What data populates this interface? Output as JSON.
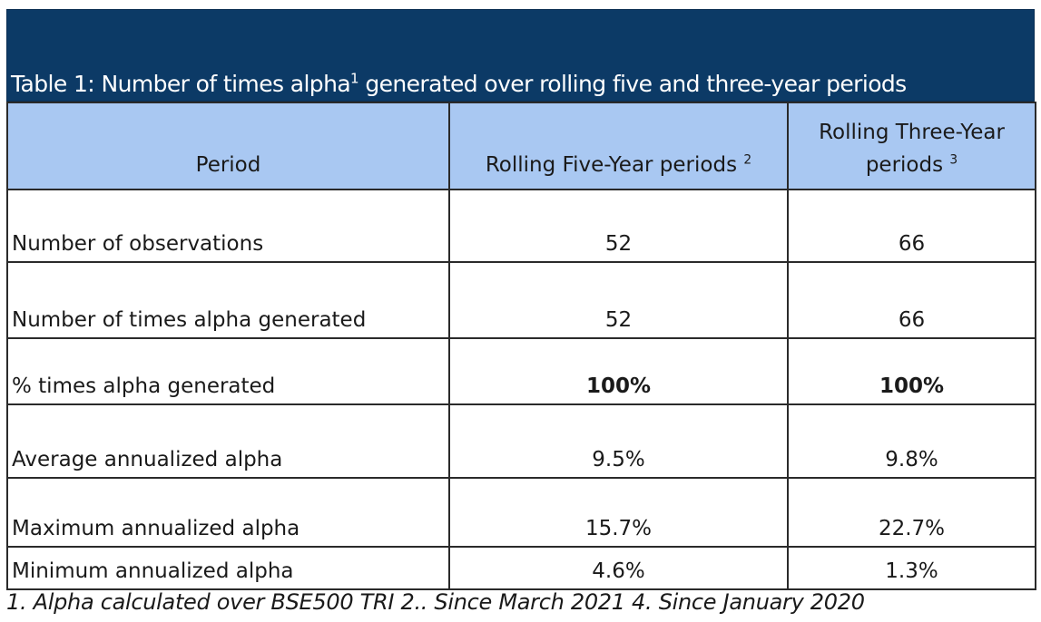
{
  "title": {
    "prefix": "Table 1: Number of times alpha",
    "superscript": "1",
    "suffix": " generated over rolling five and three-year periods"
  },
  "headers": {
    "period": "Period",
    "five_year": {
      "label": "Rolling Five-Year periods ",
      "superscript": "2"
    },
    "three_year": {
      "line1": "Rolling Three-Year",
      "line2": "periods ",
      "superscript": "3"
    }
  },
  "rows": [
    {
      "label": "Number of observations",
      "five": "52",
      "three": "66"
    },
    {
      "label": "Number of times alpha generated",
      "five": "52",
      "three": "66"
    },
    {
      "label": "% times alpha generated",
      "five": "100%",
      "three": "100%"
    },
    {
      "label": "Average annualized alpha",
      "five": "9.5%",
      "three": "9.8%"
    },
    {
      "label": "Maximum annualized alpha",
      "five": "15.7%",
      "three": "22.7%"
    },
    {
      "label": "Minimum annualized alpha",
      "five": "4.6%",
      "three": "1.3%"
    }
  ],
  "footnote": "1. Alpha calculated over BSE500 TRI 2.. Since March 2021 4. Since January 2020",
  "colors": {
    "title_background": "#0c3a66",
    "header_background": "#a9c8f2"
  }
}
